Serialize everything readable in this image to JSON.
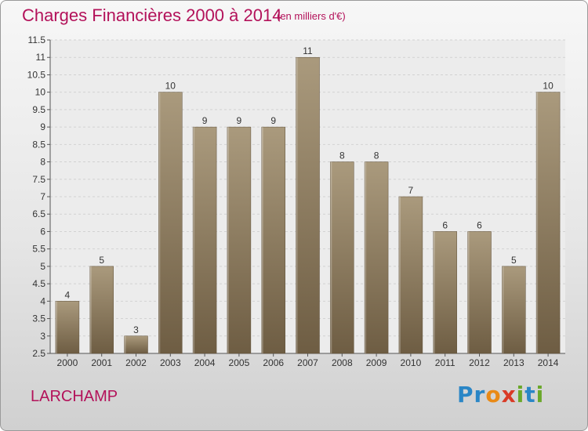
{
  "header": {
    "title": "Charges Financières 2000 à 2014",
    "subtitle": "(en milliers d'€)"
  },
  "footer": {
    "commune": "LARCHAMP",
    "logo_text": "Proxiti",
    "logo_colors": [
      "#2a86c6",
      "#2a86c6",
      "#e98a16",
      "#d93a26",
      "#6aa82a",
      "#2a86c6",
      "#6aa82a"
    ]
  },
  "colors": {
    "accent": "#b3125a",
    "bar_top": "#aa9a7d",
    "bar_bottom": "#6e5d43"
  },
  "chart_data": {
    "type": "bar",
    "categories": [
      "2000",
      "2001",
      "2002",
      "2003",
      "2004",
      "2005",
      "2006",
      "2007",
      "2008",
      "2009",
      "2010",
      "2011",
      "2012",
      "2013",
      "2014"
    ],
    "values": [
      4,
      5,
      3,
      10,
      9,
      9,
      9,
      11,
      8,
      8,
      7,
      6,
      6,
      5,
      10
    ],
    "data_labels": [
      "4",
      "5",
      "3",
      "10",
      "9",
      "9",
      "9",
      "11",
      "8",
      "8",
      "7",
      "6",
      "6",
      "5",
      "10"
    ],
    "title": "Charges Financières 2000 à 2014",
    "ylabel": "",
    "xlabel": "",
    "ylim": [
      2.5,
      11.5
    ],
    "yticks": [
      2.5,
      3,
      3.5,
      4,
      4.5,
      5,
      5.5,
      6,
      6.5,
      7,
      7.5,
      8,
      8.5,
      9,
      9.5,
      10,
      10.5,
      11,
      11.5
    ],
    "ytick_labels": [
      "2.5",
      "3",
      "3.5",
      "4",
      "4.5",
      "5",
      "5.5",
      "6",
      "6.5",
      "7",
      "7.5",
      "8",
      "8.5",
      "9",
      "9.5",
      "10",
      "10.5",
      "11",
      "11.5"
    ],
    "grid": true,
    "legend": "none"
  }
}
